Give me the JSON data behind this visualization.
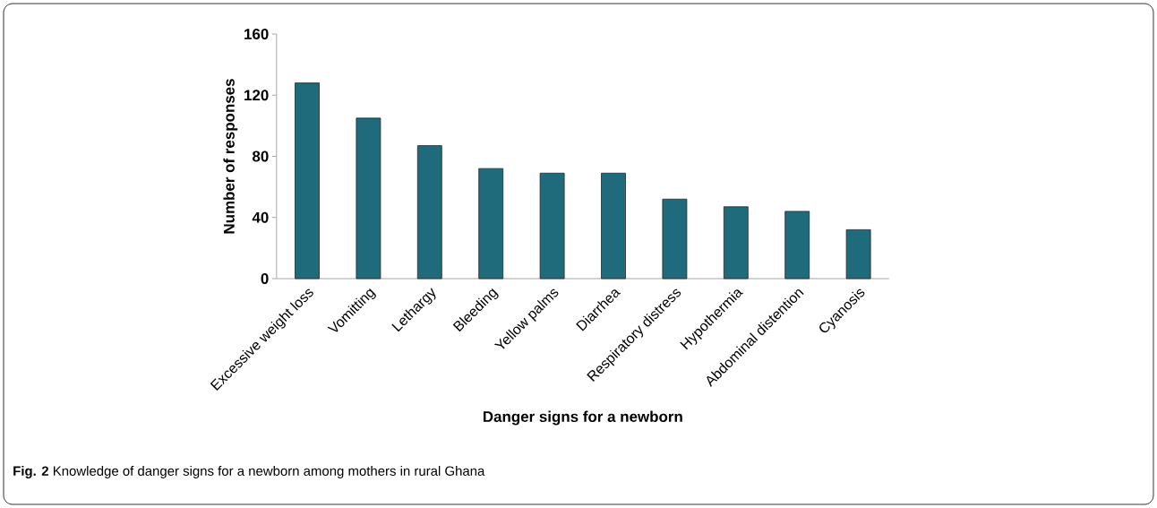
{
  "chart_data": {
    "type": "bar",
    "categories": [
      "Excessive weight loss",
      "Vomitting",
      "Lethargy",
      "Bleeding",
      "Yellow palms",
      "Diarrhea",
      "Respiratory distress",
      "Hypothermia",
      "Abdominal distention",
      "Cyanosis"
    ],
    "values": [
      128,
      105,
      87,
      72,
      69,
      69,
      52,
      47,
      44,
      32
    ],
    "color": "#1f6b7c",
    "xlabel": "Danger signs for a newborn",
    "ylabel": "Number of responses",
    "ylim": [
      0,
      160
    ],
    "yticks": [
      0,
      40,
      80,
      120,
      160
    ],
    "annotations": [
      "**Fig. 2** Knowledge of danger signs for a newborn among mothers in rural Ghana"
    ]
  }
}
